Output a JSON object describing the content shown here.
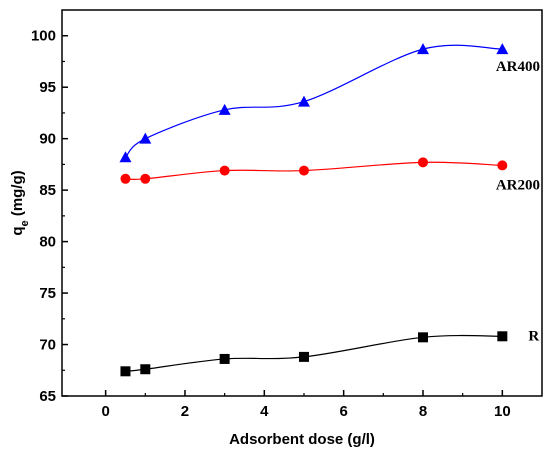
{
  "chart_data": {
    "type": "scatter",
    "title": "",
    "xlabel": "Adsorbent dose (g/l)",
    "ylabel_main": "q",
    "ylabel_sub": "e",
    "ylabel_unit": " (mg/g)",
    "xlim": [
      -1.1,
      11.0
    ],
    "ylim": [
      65,
      102.5
    ],
    "xticks": [
      0,
      2,
      4,
      6,
      8,
      10
    ],
    "yticks": [
      65,
      70,
      75,
      80,
      85,
      90,
      95,
      100
    ],
    "grid": false,
    "legend": "none",
    "series": [
      {
        "name": "AR400",
        "color": "#0000ff",
        "marker": "triangle",
        "x": [
          0.5,
          1,
          3,
          5,
          8,
          10
        ],
        "y": [
          88.2,
          90.0,
          92.8,
          93.6,
          98.7,
          98.7
        ]
      },
      {
        "name": "AR200",
        "color": "#ff0000",
        "marker": "circle",
        "x": [
          0.5,
          1,
          3,
          5,
          8,
          10
        ],
        "y": [
          86.1,
          86.1,
          86.9,
          86.9,
          87.7,
          87.4
        ]
      },
      {
        "name": "R",
        "color": "#000000",
        "marker": "square",
        "x": [
          0.5,
          1,
          3,
          5,
          8,
          10
        ],
        "y": [
          67.4,
          67.6,
          68.6,
          68.8,
          70.7,
          70.8
        ]
      }
    ]
  }
}
